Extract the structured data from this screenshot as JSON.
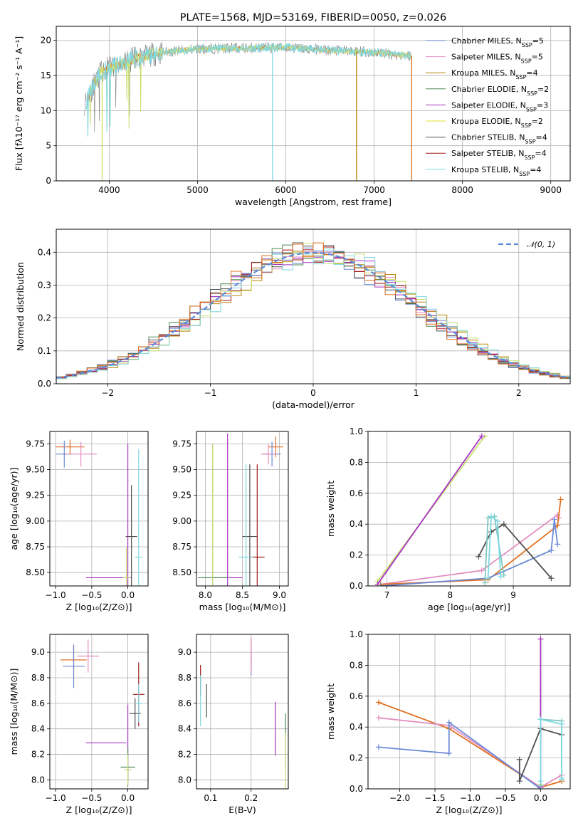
{
  "colors": {
    "chabrier_miles": "#6c8ad5",
    "salpeter_miles": "#e38ec0",
    "kroupa_miles": "#b8860b",
    "chabrier_elodie": "#4e8a57",
    "salpeter_elodie": "#a733c1",
    "kroupa_elodie": "#e0e030",
    "chabrier_stelib": "#505050",
    "salpeter_stelib": "#9e1b1b",
    "kroupa_stelib": "#7fd8e0",
    "orange": "#e07020",
    "lime": "#c8e070",
    "teal": "#80c8c0",
    "grid": "#b0b0b0"
  },
  "chart_data": [
    {
      "type": "line",
      "title": "PLATE=1568, MJD=53169, FIBERID=0050, z=0.026",
      "xlabel": "wavelength [Angstrom, rest frame]",
      "ylabel": "Flux [fλ10⁻¹⁷ erg cm⁻² s⁻¹ A⁻¹]",
      "xlim": [
        3400,
        9220
      ],
      "ylim": [
        0,
        22
      ],
      "xticks": [
        "4000",
        "5000",
        "6000",
        "7000",
        "8000",
        "9000"
      ],
      "yticks": [
        "0",
        "5",
        "10",
        "15",
        "20"
      ],
      "legend_position": "top-right",
      "series": [
        {
          "name": "Chabrier MILES, N$_{SSP}$=5",
          "label_main": "Chabrier MILES, N",
          "label_sub": "SSP",
          "label_tail": "=5"
        },
        {
          "name": "Salpeter MILES, N$_{SSP}$=5",
          "label_main": "Salpeter MILES, N",
          "label_sub": "SSP",
          "label_tail": "=5"
        },
        {
          "name": "Kroupa MILES, N$_{SSP}$=4",
          "label_main": "Kroupa MILES, N",
          "label_sub": "SSP",
          "label_tail": "=4"
        },
        {
          "name": "Chabrier ELODIE, N$_{SSP}$=2",
          "label_main": "Chabrier ELODIE, N",
          "label_sub": "SSP",
          "label_tail": "=2"
        },
        {
          "name": "Salpeter ELODIE, N$_{SSP}$=3",
          "label_main": "Salpeter ELODIE, N",
          "label_sub": "SSP",
          "label_tail": "=3"
        },
        {
          "name": "Kroupa ELODIE, N$_{SSP}$=2",
          "label_main": "Kroupa ELODIE, N",
          "label_sub": "SSP",
          "label_tail": "=2"
        },
        {
          "name": "Chabrier STELIB, N$_{SSP}$=4",
          "label_main": "Chabrier STELIB, N",
          "label_sub": "SSP",
          "label_tail": "=4"
        },
        {
          "name": "Salpeter STELIB, N$_{SSP}$=4",
          "label_main": "Salpeter STELIB, N",
          "label_sub": "SSP",
          "label_tail": "=4"
        },
        {
          "name": "Kroupa STELIB, N$_{SSP}$=4",
          "label_main": "Kroupa STELIB, N",
          "label_sub": "SSP",
          "label_tail": "=4"
        }
      ],
      "flux_envelope": {
        "x": [
          3720,
          3900,
          4100,
          4300,
          4600,
          5000,
          5500,
          6000,
          6500,
          7000,
          7400
        ],
        "y": [
          11,
          15.5,
          16.5,
          17.5,
          18.3,
          18.8,
          18.9,
          19.0,
          18.6,
          18.3,
          17.8
        ]
      },
      "drops": [
        {
          "x": 3920,
          "y": 0,
          "color": "lime"
        },
        {
          "x": 5850,
          "y": 0,
          "color": "kroupa_stelib"
        },
        {
          "x": 6800,
          "y": 0,
          "color": "kroupa_miles"
        },
        {
          "x": 7425,
          "y": 0,
          "color": "orange"
        }
      ]
    },
    {
      "type": "histogram",
      "xlabel": "(data-model)/error",
      "ylabel": "Normed distribution",
      "xlim": [
        -2.5,
        2.5
      ],
      "ylim": [
        0,
        0.47
      ],
      "xticks": [
        "−2",
        "−1",
        "0",
        "1",
        "2"
      ],
      "xtick_values": [
        -2,
        -1,
        0,
        1,
        2
      ],
      "yticks": [
        "0.0",
        "0.1",
        "0.2",
        "0.3",
        "0.4"
      ],
      "ytick_values": [
        0,
        0.1,
        0.2,
        0.3,
        0.4
      ],
      "bin_width": 0.1,
      "reference_curve": {
        "name": "N(0,1)",
        "label": "𝒩(0, 1)",
        "mean": 0,
        "sigma": 1,
        "style": "dashed"
      },
      "legend_position": "top-right"
    },
    {
      "type": "scatter",
      "panel": "age-vs-Z",
      "xlabel": "Z [log₁₀(Z/Z⊙)]",
      "ylabel": "age  [log₁₀(age/yr)]",
      "xlim": [
        -1.08,
        0.28
      ],
      "ylim": [
        8.37,
        9.87
      ],
      "xticks": [
        "−1.0",
        "−0.5",
        "0.0"
      ],
      "xtick_values": [
        -1.0,
        -0.5,
        0.0
      ],
      "yticks": [
        "8.50",
        "8.75",
        "9.00",
        "9.25",
        "9.50",
        "9.75"
      ],
      "ytick_values": [
        8.5,
        8.75,
        9.0,
        9.25,
        9.5,
        9.75
      ],
      "points": [
        {
          "x": -0.8,
          "y": 9.72,
          "xerr": 0.2,
          "yerr": 0.07,
          "color": "orange"
        },
        {
          "x": -0.88,
          "y": 9.65,
          "xerr": 0.12,
          "yerr": 0.13,
          "color": "chabrier_miles"
        },
        {
          "x": -0.65,
          "y": 9.65,
          "xerr": 0.22,
          "yerr": 0.12,
          "color": "salpeter_miles"
        },
        {
          "x": -0.3,
          "y": 8.45,
          "xerr": 0.28,
          "yerr": 0.0,
          "color": "salpeter_elodie"
        },
        {
          "x": 0.0,
          "y": 8.45,
          "xerr": 0.05,
          "yerr": 1.3,
          "color": "salpeter_elodie"
        },
        {
          "x": 0.05,
          "y": 8.85,
          "xerr": 0.08,
          "yerr": 0.5,
          "color": "chabrier_stelib"
        },
        {
          "x": 0.15,
          "y": 8.65,
          "xerr": 0.05,
          "yerr": 1.05,
          "color": "kroupa_stelib"
        },
        {
          "x": -0.02,
          "y": 8.45,
          "xerr": 0.05,
          "yerr": 0.3,
          "color": "lime"
        }
      ]
    },
    {
      "type": "scatter",
      "panel": "age-vs-mass",
      "xlabel": "mass [log₁₀(M/M⊙)]",
      "ylabel": "",
      "xlim": [
        7.88,
        9.12
      ],
      "ylim": [
        8.37,
        9.87
      ],
      "xticks": [
        "8.0",
        "8.5",
        "9.0"
      ],
      "xtick_values": [
        8.0,
        8.5,
        9.0
      ],
      "yticks": [
        "8.50",
        "8.75",
        "9.00",
        "9.25",
        "9.50",
        "9.75"
      ],
      "ytick_values": [
        8.5,
        8.75,
        9.0,
        9.25,
        9.5,
        9.75
      ],
      "points": [
        {
          "x": 8.95,
          "y": 9.72,
          "xerr": 0.1,
          "yerr": 0.1,
          "color": "orange"
        },
        {
          "x": 8.9,
          "y": 9.65,
          "xerr": 0.12,
          "yerr": 0.12,
          "color": "chabrier_miles"
        },
        {
          "x": 8.85,
          "y": 9.65,
          "xerr": 0.1,
          "yerr": 0.1,
          "color": "salpeter_miles"
        },
        {
          "x": 8.3,
          "y": 8.45,
          "xerr": 0.2,
          "yerr": 1.4,
          "color": "salpeter_elodie"
        },
        {
          "x": 8.1,
          "y": 8.45,
          "xerr": 0.2,
          "yerr": 1.3,
          "color": "chabrier_elodie"
        },
        {
          "x": 8.1,
          "y": 8.45,
          "xerr": 0.0,
          "yerr": 1.3,
          "color": "lime"
        },
        {
          "x": 8.6,
          "y": 8.85,
          "xerr": 0.1,
          "yerr": 0.7,
          "color": "chabrier_stelib"
        },
        {
          "x": 8.7,
          "y": 8.65,
          "xerr": 0.1,
          "yerr": 0.9,
          "color": "salpeter_stelib"
        },
        {
          "x": 8.55,
          "y": 8.65,
          "xerr": 0.1,
          "yerr": 0.9,
          "color": "kroupa_stelib"
        }
      ]
    },
    {
      "type": "line",
      "panel": "massweight-vs-age",
      "xlabel": "age  [log₁₀(age/yr)]",
      "ylabel": "mass weight",
      "xlim": [
        6.7,
        9.9
      ],
      "ylim": [
        0,
        1.0
      ],
      "xticks": [
        "7",
        "8",
        "9"
      ],
      "xtick_values": [
        7,
        8,
        9
      ],
      "yticks": [
        "0.0",
        "0.2",
        "0.4",
        "0.6",
        "0.8",
        "1.0"
      ],
      "ytick_values": [
        0,
        0.2,
        0.4,
        0.6,
        0.8,
        1.0
      ],
      "series": [
        {
          "color": "lime",
          "x": [
            6.85,
            8.55
          ],
          "y": [
            0.03,
            0.97
          ]
        },
        {
          "color": "salpeter_elodie",
          "x": [
            6.85,
            8.5
          ],
          "y": [
            0.01,
            0.97
          ]
        },
        {
          "color": "salpeter_miles",
          "x": [
            6.9,
            8.5,
            9.7,
            9.72
          ],
          "y": [
            0.01,
            0.1,
            0.46,
            0.44
          ]
        },
        {
          "color": "orange",
          "x": [
            6.9,
            8.6,
            9.7,
            9.75
          ],
          "y": [
            0.01,
            0.04,
            0.39,
            0.56
          ]
        },
        {
          "color": "chabrier_miles",
          "x": [
            6.9,
            8.6,
            9.6,
            9.65,
            9.7
          ],
          "y": [
            0.0,
            0.05,
            0.23,
            0.43,
            0.27
          ]
        },
        {
          "color": "chabrier_stelib",
          "x": [
            8.45,
            8.65,
            8.85,
            9.6
          ],
          "y": [
            0.19,
            0.35,
            0.4,
            0.05
          ]
        },
        {
          "color": "teal",
          "x": [
            8.55,
            8.6,
            8.7,
            8.85
          ],
          "y": [
            0.02,
            0.44,
            0.45,
            0.07
          ]
        },
        {
          "color": "kroupa_stelib",
          "x": [
            8.6,
            8.65,
            8.75,
            8.8
          ],
          "y": [
            0.05,
            0.45,
            0.42,
            0.06
          ]
        }
      ]
    },
    {
      "type": "scatter",
      "panel": "mass-vs-Z",
      "xlabel": "Z [log₁₀(Z/Z⊙)]",
      "ylabel": "mass [log₁₀(M/M⊙)]",
      "xlim": [
        -1.08,
        0.28
      ],
      "ylim": [
        7.93,
        9.14
      ],
      "xticks": [
        "−1.0",
        "−0.5",
        "0.0"
      ],
      "xtick_values": [
        -1.0,
        -0.5,
        0.0
      ],
      "yticks": [
        "8.0",
        "8.2",
        "8.4",
        "8.6",
        "8.8",
        "9.0"
      ],
      "ytick_values": [
        8.0,
        8.2,
        8.4,
        8.6,
        8.8,
        9.0
      ],
      "points": [
        {
          "x": -0.75,
          "y": 8.94,
          "xerr": 0.18,
          "yerr": 0.12,
          "color": "orange"
        },
        {
          "x": -0.75,
          "y": 8.89,
          "xerr": 0.15,
          "yerr": 0.17,
          "color": "chabrier_miles"
        },
        {
          "x": -0.55,
          "y": 8.97,
          "xerr": 0.15,
          "yerr": 0.13,
          "color": "salpeter_miles"
        },
        {
          "x": -0.3,
          "y": 8.29,
          "xerr": 0.28,
          "yerr": 0.0,
          "color": "salpeter_elodie"
        },
        {
          "x": 0.0,
          "y": 8.29,
          "xerr": 0.0,
          "yerr": 0.3,
          "color": "salpeter_elodie"
        },
        {
          "x": 0.0,
          "y": 8.1,
          "xerr": 0.1,
          "yerr": 0.15,
          "color": "chabrier_elodie"
        },
        {
          "x": 0.0,
          "y": 8.08,
          "xerr": 0.05,
          "yerr": 0.12,
          "color": "lime"
        },
        {
          "x": 0.1,
          "y": 8.52,
          "xerr": 0.08,
          "yerr": 0.12,
          "color": "chabrier_stelib"
        },
        {
          "x": 0.15,
          "y": 8.67,
          "xerr": 0.08,
          "yerr": 0.25,
          "color": "salpeter_stelib"
        },
        {
          "x": 0.15,
          "y": 8.6,
          "xerr": 0.05,
          "yerr": 0.15,
          "color": "kroupa_stelib"
        }
      ]
    },
    {
      "type": "scatter",
      "panel": "mass-vs-EBV",
      "xlabel": "E(B-V)",
      "ylabel": "",
      "xlim": [
        0.065,
        0.292
      ],
      "ylim": [
        7.93,
        9.14
      ],
      "xticks": [
        "0.1",
        "0.2"
      ],
      "xtick_values": [
        0.1,
        0.2
      ],
      "yticks": [
        "8.0",
        "8.2",
        "8.4",
        "8.6",
        "8.8",
        "9.0"
      ],
      "ytick_values": [
        8.0,
        8.2,
        8.4,
        8.6,
        8.8,
        9.0
      ],
      "points": [
        {
          "x": 0.075,
          "y": 8.78,
          "yerr": 0.12,
          "color": "salpeter_stelib"
        },
        {
          "x": 0.075,
          "y": 8.62,
          "yerr": 0.2,
          "color": "kroupa_stelib"
        },
        {
          "x": 0.09,
          "y": 8.62,
          "yerr": 0.13,
          "color": "chabrier_stelib"
        },
        {
          "x": 0.2,
          "y": 8.98,
          "yerr": 0.12,
          "color": "orange"
        },
        {
          "x": 0.2,
          "y": 8.92,
          "yerr": 0.1,
          "color": "chabrier_miles"
        },
        {
          "x": 0.2,
          "y": 8.98,
          "yerr": 0.14,
          "color": "salpeter_miles"
        },
        {
          "x": 0.26,
          "y": 8.4,
          "yerr": 0.21,
          "color": "salpeter_elodie"
        },
        {
          "x": 0.285,
          "y": 8.3,
          "yerr": 0.22,
          "color": "chabrier_elodie"
        },
        {
          "x": 0.285,
          "y": 8.15,
          "yerr": 0.22,
          "color": "lime"
        }
      ]
    },
    {
      "type": "line",
      "panel": "massweight-vs-Z",
      "xlabel": "Z [log₁₀(Z/Z⊙)]",
      "ylabel": "mass weight",
      "xlim": [
        -2.45,
        0.42
      ],
      "ylim": [
        0,
        1.0
      ],
      "xticks": [
        "−2.0",
        "−1.5",
        "−1.0",
        "−0.5",
        "0.0"
      ],
      "xtick_values": [
        -2.0,
        -1.5,
        -1.0,
        -0.5,
        0.0
      ],
      "yticks": [
        "0.0",
        "0.2",
        "0.4",
        "0.6",
        "0.8",
        "1.0"
      ],
      "ytick_values": [
        0,
        0.2,
        0.4,
        0.6,
        0.8,
        1.0
      ],
      "series": [
        {
          "color": "orange",
          "x": [
            -2.3,
            -1.3,
            0.0,
            0.3
          ],
          "y": [
            0.56,
            0.39,
            0.01,
            0.05
          ]
        },
        {
          "color": "salpeter_miles",
          "x": [
            -2.3,
            -1.3,
            0.0,
            0.3
          ],
          "y": [
            0.46,
            0.41,
            0.01,
            0.09
          ]
        },
        {
          "color": "chabrier_miles",
          "x": [
            -2.3,
            -1.3,
            -1.3,
            0.0
          ],
          "y": [
            0.27,
            0.23,
            0.43,
            0.0
          ]
        },
        {
          "color": "chabrier_stelib",
          "x": [
            -0.3,
            -0.3,
            0.0,
            0.3
          ],
          "y": [
            0.19,
            0.05,
            0.39,
            0.35
          ]
        },
        {
          "color": "lime",
          "x": [
            0.0,
            0.0
          ],
          "y": [
            0.03,
            0.97
          ]
        },
        {
          "color": "salpeter_elodie",
          "x": [
            0.0,
            0.0
          ],
          "y": [
            0.01,
            0.97
          ]
        },
        {
          "color": "teal",
          "x": [
            0.0,
            0.0,
            0.3,
            0.3
          ],
          "y": [
            0.02,
            0.45,
            0.44,
            0.07
          ]
        },
        {
          "color": "kroupa_stelib",
          "x": [
            0.0,
            0.0,
            0.3,
            0.3
          ],
          "y": [
            0.05,
            0.45,
            0.42,
            0.06
          ]
        }
      ]
    }
  ]
}
